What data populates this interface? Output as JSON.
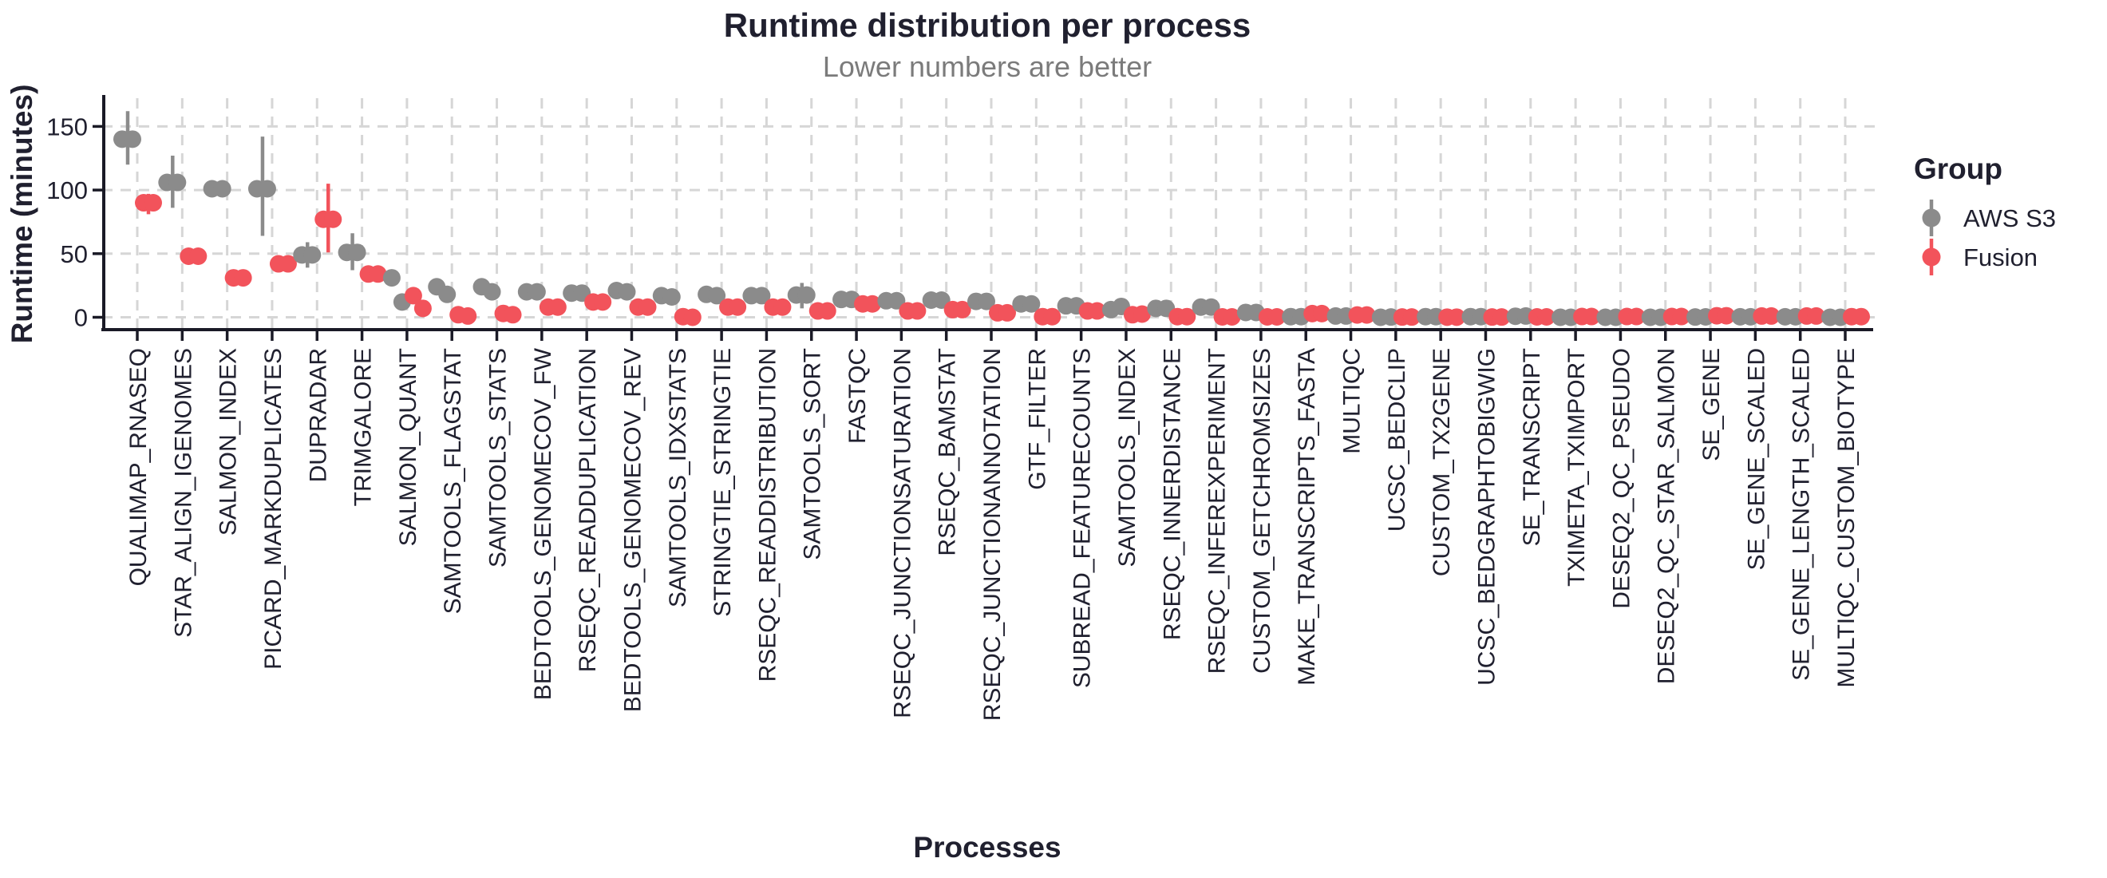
{
  "title": "Runtime distribution per process",
  "subtitle": "Lower numbers are better",
  "x_axis_label": "Processes",
  "y_axis_label": "Runtime (minutes)",
  "legend": {
    "title": "Group",
    "items": [
      {
        "label": "AWS S3",
        "color": "#8B8B8B"
      },
      {
        "label": "Fusion",
        "color": "#F2535B"
      }
    ]
  },
  "colors": {
    "aws": "#8B8B8B",
    "fusion": "#F2535B",
    "axis": "#1A1A26",
    "tick_label": "#20202F",
    "grid": "#D6D6D6",
    "title": "#20202F",
    "subtitle": "#7B7B7B"
  },
  "chart_data": {
    "type": "scatter",
    "note": "Dodged point plot: 2 runs per group per process, mean points with sd error bars where visible",
    "series_names": [
      "AWS S3",
      "Fusion"
    ],
    "y_ticks": [
      0,
      50,
      100,
      150
    ],
    "ylim": [
      0,
      174
    ],
    "grid": true,
    "legend_position": "right",
    "processes": [
      {
        "name": "QUALIMAP_RNASEQ",
        "aws": [
          140,
          140
        ],
        "aws_err": [
          120,
          162
        ],
        "fusion": [
          90,
          90
        ],
        "fusion_err": [
          81,
          97
        ]
      },
      {
        "name": "STAR_ALIGN_IGENOMES",
        "aws": [
          106,
          106
        ],
        "aws_err": [
          86,
          127
        ],
        "fusion": [
          48,
          48
        ],
        "fusion_err": null
      },
      {
        "name": "SALMON_INDEX",
        "aws": [
          101,
          101
        ],
        "aws_err": null,
        "fusion": [
          31,
          31
        ],
        "fusion_err": null
      },
      {
        "name": "PICARD_MARKDUPLICATES",
        "aws": [
          101,
          101
        ],
        "aws_err": [
          64,
          142
        ],
        "fusion": [
          42,
          42
        ],
        "fusion_err": null
      },
      {
        "name": "DUPRADAR",
        "aws": [
          49,
          49
        ],
        "aws_err": [
          39,
          59
        ],
        "fusion": [
          77,
          77
        ],
        "fusion_err": [
          51,
          105
        ]
      },
      {
        "name": "TRIMGALORE",
        "aws": [
          51,
          51
        ],
        "aws_err": [
          37,
          66
        ],
        "fusion": [
          34,
          34
        ],
        "fusion_err": null
      },
      {
        "name": "SALMON_QUANT",
        "aws": [
          31,
          12
        ],
        "aws_err": null,
        "fusion": [
          17,
          7
        ],
        "fusion_err": null
      },
      {
        "name": "SAMTOOLS_FLAGSTAT",
        "aws": [
          24,
          18
        ],
        "aws_err": null,
        "fusion": [
          2,
          1
        ],
        "fusion_err": null
      },
      {
        "name": "SAMTOOLS_STATS",
        "aws": [
          24,
          20
        ],
        "aws_err": null,
        "fusion": [
          3,
          2
        ],
        "fusion_err": null
      },
      {
        "name": "BEDTOOLS_GENOMECOV_FW",
        "aws": [
          20,
          20
        ],
        "aws_err": null,
        "fusion": [
          8,
          8
        ],
        "fusion_err": null
      },
      {
        "name": "RSEQC_READDUPLICATION",
        "aws": [
          19,
          19
        ],
        "aws_err": null,
        "fusion": [
          12,
          12
        ],
        "fusion_err": null
      },
      {
        "name": "BEDTOOLS_GENOMECOV_REV",
        "aws": [
          21,
          20
        ],
        "aws_err": null,
        "fusion": [
          8,
          8
        ],
        "fusion_err": null
      },
      {
        "name": "SAMTOOLS_IDXSTATS",
        "aws": [
          17,
          16
        ],
        "aws_err": null,
        "fusion": [
          0.5,
          0
        ],
        "fusion_err": null
      },
      {
        "name": "STRINGTIE_STRINGTIE",
        "aws": [
          18,
          17
        ],
        "aws_err": null,
        "fusion": [
          8,
          8
        ],
        "fusion_err": null
      },
      {
        "name": "RSEQC_READDISTRIBUTION",
        "aws": [
          17,
          17
        ],
        "aws_err": null,
        "fusion": [
          8,
          8
        ],
        "fusion_err": null
      },
      {
        "name": "SAMTOOLS_SORT",
        "aws": [
          17.5,
          17.5
        ],
        "aws_err": [
          7,
          27
        ],
        "fusion": [
          5,
          5
        ],
        "fusion_err": null
      },
      {
        "name": "FASTQC",
        "aws": [
          14,
          14
        ],
        "aws_err": null,
        "fusion": [
          10.5,
          10.5
        ],
        "fusion_err": null
      },
      {
        "name": "RSEQC_JUNCTIONSATURATION",
        "aws": [
          13,
          13
        ],
        "aws_err": null,
        "fusion": [
          5,
          5
        ],
        "fusion_err": null
      },
      {
        "name": "RSEQC_BAMSTAT",
        "aws": [
          13.5,
          13.5
        ],
        "aws_err": null,
        "fusion": [
          6,
          6
        ],
        "fusion_err": null
      },
      {
        "name": "RSEQC_JUNCTIONANNOTATION",
        "aws": [
          12.5,
          12.5
        ],
        "aws_err": null,
        "fusion": [
          3.5,
          3.5
        ],
        "fusion_err": null
      },
      {
        "name": "GTF_FILTER",
        "aws": [
          10.5,
          10.5
        ],
        "aws_err": null,
        "fusion": [
          0.5,
          0.5
        ],
        "fusion_err": null
      },
      {
        "name": "SUBREAD_FEATURECOUNTS",
        "aws": [
          9,
          9
        ],
        "aws_err": null,
        "fusion": [
          5,
          5
        ],
        "fusion_err": null
      },
      {
        "name": "SAMTOOLS_INDEX",
        "aws": [
          6,
          8.5
        ],
        "aws_err": null,
        "fusion": [
          2,
          2.5
        ],
        "fusion_err": null
      },
      {
        "name": "RSEQC_INNERDISTANCE",
        "aws": [
          7,
          7
        ],
        "aws_err": null,
        "fusion": [
          0.5,
          0.5
        ],
        "fusion_err": null
      },
      {
        "name": "RSEQC_INFEREXPERIMENT",
        "aws": [
          8,
          8
        ],
        "aws_err": null,
        "fusion": [
          0.3,
          0.3
        ],
        "fusion_err": null
      },
      {
        "name": "CUSTOM_GETCHROMSIZES",
        "aws": [
          3.8,
          3.8
        ],
        "aws_err": null,
        "fusion": [
          0.3,
          0.3
        ],
        "fusion_err": null
      },
      {
        "name": "MAKE_TRANSCRIPTS_FASTA",
        "aws": [
          0.5,
          0.5
        ],
        "aws_err": null,
        "fusion": [
          2.9,
          2.9
        ],
        "fusion_err": null
      },
      {
        "name": "MULTIQC",
        "aws": [
          1,
          1
        ],
        "aws_err": null,
        "fusion": [
          1.8,
          1.8
        ],
        "fusion_err": null
      },
      {
        "name": "UCSC_BEDCLIP",
        "aws": [
          0,
          0.2
        ],
        "aws_err": null,
        "fusion": [
          0.2,
          0.2
        ],
        "fusion_err": null
      },
      {
        "name": "CUSTOM_TX2GENE",
        "aws": [
          0.5,
          0.5
        ],
        "aws_err": null,
        "fusion": [
          0.1,
          0.1
        ],
        "fusion_err": null
      },
      {
        "name": "UCSC_BEDGRAPHTOBIGWIG",
        "aws": [
          0.5,
          0.5
        ],
        "aws_err": null,
        "fusion": [
          0.2,
          0.2
        ],
        "fusion_err": null
      },
      {
        "name": "SE_TRANSCRIPT",
        "aws": [
          0.8,
          1
        ],
        "aws_err": null,
        "fusion": [
          0.3,
          0.3
        ],
        "fusion_err": null
      },
      {
        "name": "TXIMETA_TXIMPORT",
        "aws": [
          0,
          0
        ],
        "aws_err": null,
        "fusion": [
          0.6,
          0.6
        ],
        "fusion_err": null
      },
      {
        "name": "DESEQ2_QC_PSEUDO",
        "aws": [
          0,
          0
        ],
        "aws_err": null,
        "fusion": [
          0.6,
          0.6
        ],
        "fusion_err": null
      },
      {
        "name": "DESEQ2_QC_STAR_SALMON",
        "aws": [
          0,
          0
        ],
        "aws_err": null,
        "fusion": [
          0.6,
          0.6
        ],
        "fusion_err": null
      },
      {
        "name": "SE_GENE",
        "aws": [
          0.2,
          0.3
        ],
        "aws_err": null,
        "fusion": [
          1.2,
          1.2
        ],
        "fusion_err": null
      },
      {
        "name": "SE_GENE_SCALED",
        "aws": [
          0.4,
          0.4
        ],
        "aws_err": null,
        "fusion": [
          1,
          1
        ],
        "fusion_err": null
      },
      {
        "name": "SE_GENE_LENGTH_SCALED",
        "aws": [
          0.4,
          0.4
        ],
        "aws_err": null,
        "fusion": [
          1,
          1
        ],
        "fusion_err": null
      },
      {
        "name": "MULTIQC_CUSTOM_BIOTYPE",
        "aws": [
          0,
          0
        ],
        "aws_err": null,
        "fusion": [
          0.5,
          0.5
        ],
        "fusion_err": null
      }
    ]
  }
}
